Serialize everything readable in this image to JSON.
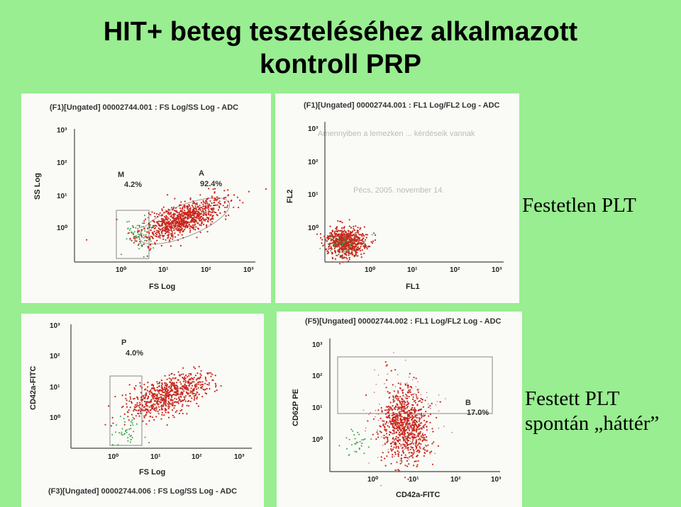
{
  "title": {
    "line1": "HIT+ beteg teszteléséhez alkalmazott",
    "line2": "kontroll PRP"
  },
  "labels": {
    "unstained": "Festetlen PLT",
    "stained_line1": "Festett PLT",
    "stained_line2": "spontán „háttér”"
  },
  "colors": {
    "background": "#98ee90",
    "red_events": "#c8281e",
    "green_events": "#3aa048",
    "gate": "#888888"
  },
  "chart_data": [
    {
      "type": "scatter",
      "header": "(F1)[Ungated] 00002744.001 : FS Log/SS Log - ADC",
      "xlabel": "FS Log",
      "ylabel": "SS Log",
      "x_ticks": [
        "10⁰",
        "10¹",
        "10²",
        "10³"
      ],
      "y_ticks": [
        "10⁰",
        "10¹",
        "10²",
        "10³"
      ],
      "scale": "log",
      "xlim": [
        0.1,
        1000
      ],
      "ylim": [
        0.1,
        1000
      ],
      "gates": [
        {
          "name": "M",
          "percent": "4.2%"
        },
        {
          "name": "A",
          "percent": "92.4%"
        }
      ]
    },
    {
      "type": "scatter",
      "header": "(F1)[Ungated] 00002744.001 : FL1 Log/FL2 Log - ADC",
      "xlabel": "FL1",
      "ylabel": "FL2",
      "x_ticks": [
        "10⁰",
        "10¹",
        "10²",
        "10³"
      ],
      "y_ticks": [
        "10⁰",
        "10¹",
        "10²",
        "10³"
      ],
      "scale": "log",
      "xlim": [
        0.1,
        1000
      ],
      "ylim": [
        0.1,
        1000
      ],
      "gates": []
    },
    {
      "type": "scatter",
      "header": "(F3)[Ungated] 00002744.006 : FS Log/SS Log - ADC",
      "xlabel": "FS Log",
      "ylabel": "CD42a-FITC",
      "x_ticks": [
        "10⁰",
        "10¹",
        "10²",
        "10³"
      ],
      "y_ticks": [
        "10⁰",
        "10¹",
        "10²",
        "10³"
      ],
      "scale": "log",
      "xlim": [
        0.1,
        1000
      ],
      "ylim": [
        0.1,
        1000
      ],
      "gates": [
        {
          "name": "P",
          "percent": "4.0%"
        }
      ]
    },
    {
      "type": "scatter",
      "header": "(F5)[Ungated] 00002744.002 : FL1 Log/FL2 Log - ADC",
      "xlabel": "CD42a-FITC",
      "ylabel": "CD62P PE",
      "x_ticks": [
        "10⁰",
        "10¹",
        "10²",
        "10³"
      ],
      "y_ticks": [
        "10⁰",
        "10¹",
        "10²",
        "10³"
      ],
      "scale": "log",
      "xlim": [
        0.1,
        1000
      ],
      "ylim": [
        0.1,
        1000
      ],
      "gates": [
        {
          "name": "B",
          "percent": "17.0%"
        }
      ]
    }
  ]
}
